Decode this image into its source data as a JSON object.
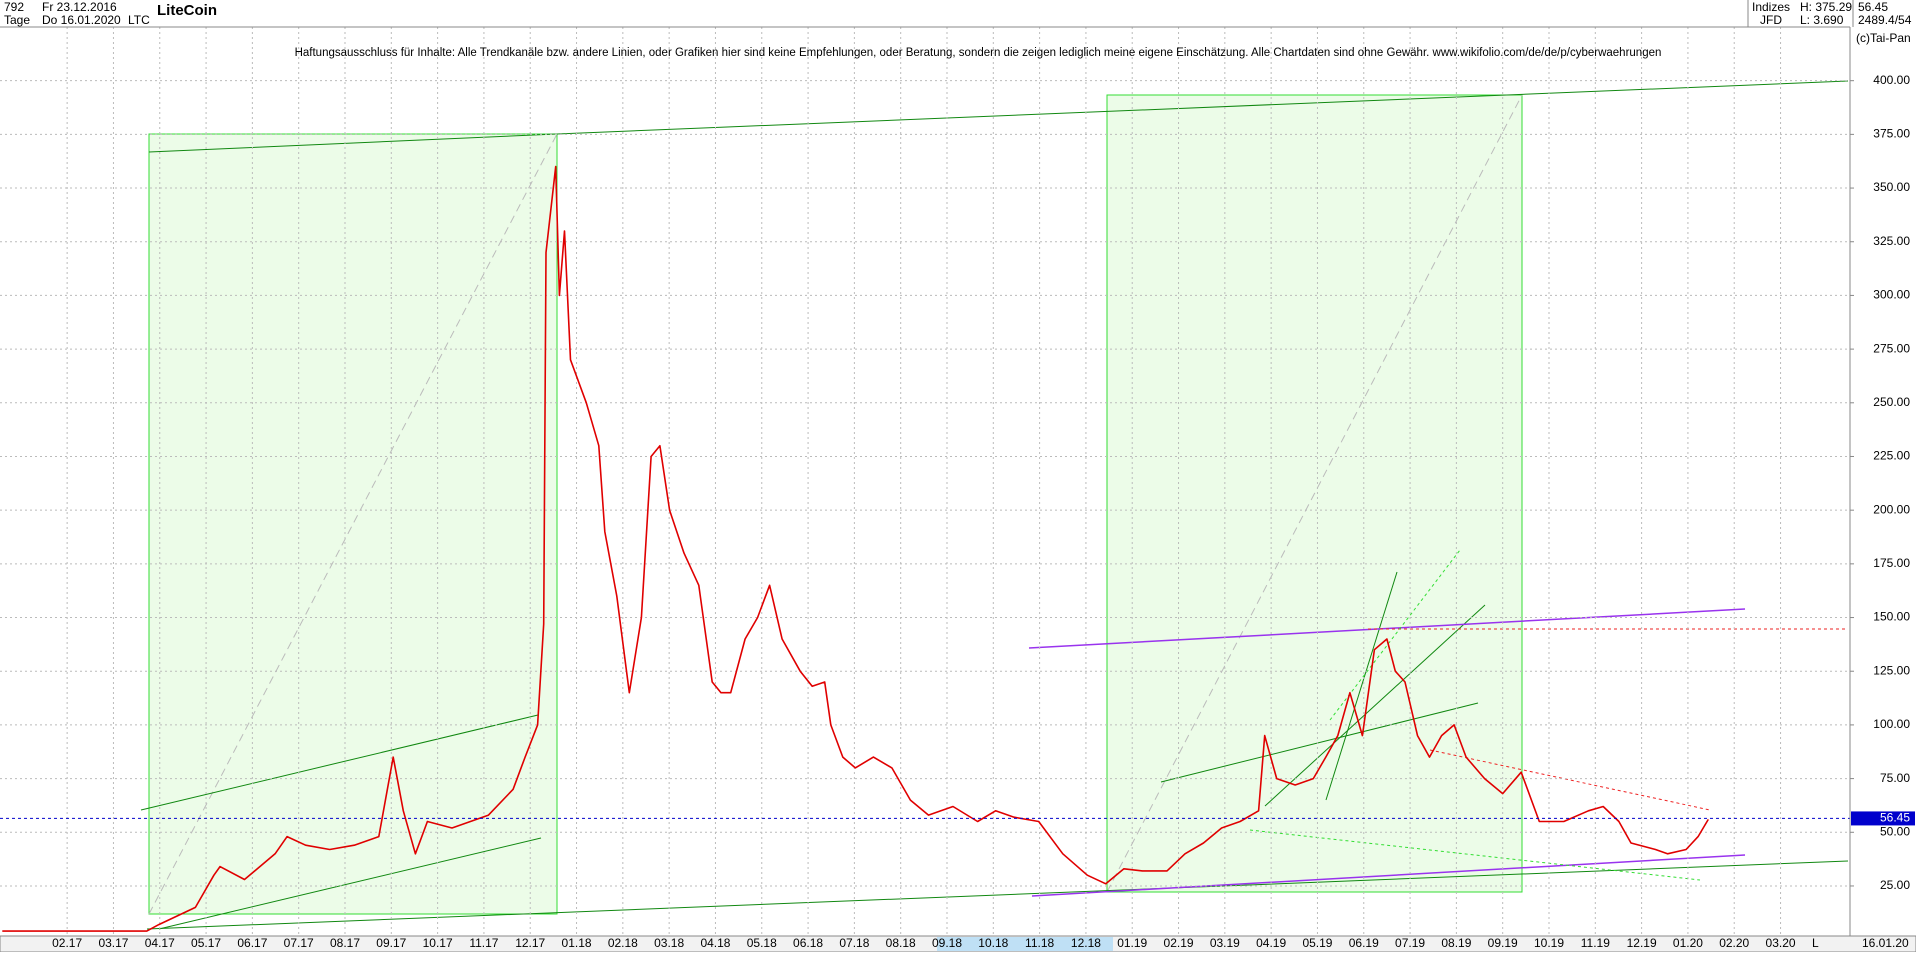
{
  "header": {
    "id": "792",
    "start_date": "Fr 23.12.2016",
    "period": "Tage",
    "end_date": "Do 16.01.2020",
    "symbol": "LTC",
    "group": "Indizes",
    "source": "JFD",
    "high": "H: 375.29",
    "low": "L: 3.690",
    "price": "56.45",
    "volume": "2489.4/54",
    "copyright": "(c)Tai-Pan",
    "last_date": "16.01.20",
    "scale_mode": "L"
  },
  "chart_data": {
    "type": "line",
    "title": "LiteCoin",
    "annotation": "Haftungsausschluss für Inhalte: Alle Trendkanäle bzw. andere Linien, oder Grafiken hier sind keine Empfehlungen, oder Beratung, sondern die zeigen lediglich meine eigene Einschätzung. Alle Chartdaten sind ohne Gewähr.  www.wikifolio.com/de/de/p/cyberwaehrungen",
    "current_price": 56.45,
    "current_price_color": "#0000cc",
    "xlim": [
      0.55,
      40.5
    ],
    "ylim": [
      1.7,
      425
    ],
    "grid": true,
    "xticks": [
      {
        "value": 2,
        "label": "02.17"
      },
      {
        "value": 3,
        "label": "03.17"
      },
      {
        "value": 4,
        "label": "04.17"
      },
      {
        "value": 5,
        "label": "05.17"
      },
      {
        "value": 6,
        "label": "06.17"
      },
      {
        "value": 7,
        "label": "07.17"
      },
      {
        "value": 8,
        "label": "08.17"
      },
      {
        "value": 9,
        "label": "09.17"
      },
      {
        "value": 10,
        "label": "10.17"
      },
      {
        "value": 11,
        "label": "11.17"
      },
      {
        "value": 12,
        "label": "12.17"
      },
      {
        "value": 13,
        "label": "01.18"
      },
      {
        "value": 14,
        "label": "02.18"
      },
      {
        "value": 15,
        "label": "03.18"
      },
      {
        "value": 16,
        "label": "04.18"
      },
      {
        "value": 17,
        "label": "05.18"
      },
      {
        "value": 18,
        "label": "06.18"
      },
      {
        "value": 19,
        "label": "07.18"
      },
      {
        "value": 20,
        "label": "08.18"
      },
      {
        "value": 21,
        "label": "09.18"
      },
      {
        "value": 22,
        "label": "10.18"
      },
      {
        "value": 23,
        "label": "11.18"
      },
      {
        "value": 24,
        "label": "12.18"
      },
      {
        "value": 25,
        "label": "01.19"
      },
      {
        "value": 26,
        "label": "02.19"
      },
      {
        "value": 27,
        "label": "03.19"
      },
      {
        "value": 28,
        "label": "04.19"
      },
      {
        "value": 29,
        "label": "05.19"
      },
      {
        "value": 30,
        "label": "06.19"
      },
      {
        "value": 31,
        "label": "07.19"
      },
      {
        "value": 32,
        "label": "08.19"
      },
      {
        "value": 33,
        "label": "09.19"
      },
      {
        "value": 34,
        "label": "10.19"
      },
      {
        "value": 35,
        "label": "11.19"
      },
      {
        "value": 36,
        "label": "12.19"
      },
      {
        "value": 37,
        "label": "01.20"
      },
      {
        "value": 38,
        "label": "02.20"
      },
      {
        "value": 39,
        "label": "03.20"
      }
    ],
    "yticks": [
      {
        "value": 25,
        "label": "25.00"
      },
      {
        "value": 50,
        "label": "50.00"
      },
      {
        "value": 75,
        "label": "75.00"
      },
      {
        "value": 100,
        "label": "100.00"
      },
      {
        "value": 125,
        "label": "125.00"
      },
      {
        "value": 150,
        "label": "150.00"
      },
      {
        "value": 175,
        "label": "175.00"
      },
      {
        "value": 200,
        "label": "200.00"
      },
      {
        "value": 225,
        "label": "225.00"
      },
      {
        "value": 250,
        "label": "250.00"
      },
      {
        "value": 275,
        "label": "275.00"
      },
      {
        "value": 300,
        "label": "300.00"
      },
      {
        "value": 325,
        "label": "325.00"
      },
      {
        "value": 350,
        "label": "350.00"
      },
      {
        "value": 375,
        "label": "375.00"
      },
      {
        "value": 400,
        "label": "400.00"
      }
    ],
    "series": [
      {
        "name": "LTC",
        "color": "#e00000",
        "x": [
          0.6,
          3.72,
          3.98,
          4.77,
          5.17,
          5.3,
          5.83,
          6.49,
          6.75,
          7.15,
          7.67,
          8.2,
          8.73,
          9.04,
          9.26,
          9.52,
          9.78,
          10.31,
          11.1,
          11.63,
          11.89,
          12.16,
          12.29,
          12.34,
          12.55,
          12.63,
          12.74,
          12.87,
          13.21,
          13.48,
          13.61,
          13.87,
          14.14,
          14.4,
          14.61,
          14.8,
          15.01,
          15.32,
          15.64,
          15.93,
          16.12,
          16.33,
          16.64,
          16.91,
          17.17,
          17.44,
          17.83,
          18.09,
          18.36,
          18.49,
          18.75,
          19.02,
          19.41,
          19.81,
          20.21,
          20.6,
          21.13,
          21.66,
          22.05,
          22.45,
          22.98,
          23.5,
          24.03,
          24.43,
          24.82,
          25.22,
          25.75,
          26.14,
          26.54,
          26.93,
          27.33,
          27.73,
          27.86,
          28.12,
          28.52,
          28.91,
          29.18,
          29.44,
          29.7,
          29.97,
          30.23,
          30.5,
          30.68,
          30.89,
          31.16,
          31.42,
          31.68,
          31.95,
          32.21,
          32.61,
          33.0,
          33.4,
          33.79,
          34.32,
          34.85,
          35.17,
          35.51,
          35.77,
          36.3,
          36.56,
          36.96,
          37.22,
          37.44
        ],
        "values": [
          4,
          4,
          7,
          15,
          30,
          34,
          28,
          40,
          48,
          44,
          42,
          44,
          48,
          85,
          60,
          40,
          55,
          52,
          58,
          70,
          85,
          100,
          147,
          320,
          360,
          300,
          330,
          270,
          250,
          230,
          190,
          160,
          115,
          150,
          225,
          230,
          200,
          180,
          165,
          120,
          115,
          115,
          140,
          150,
          165,
          140,
          125,
          118,
          120,
          100,
          85,
          80,
          85,
          80,
          65,
          58,
          62,
          55,
          60,
          57,
          55,
          40,
          30,
          26,
          33,
          32,
          32,
          40,
          45,
          52,
          55,
          60,
          95,
          75,
          72,
          75,
          85,
          95,
          115,
          95,
          135,
          140,
          125,
          120,
          95,
          85,
          95,
          100,
          85,
          75,
          68,
          78,
          55,
          55,
          60,
          62,
          55,
          45,
          42,
          40,
          42,
          48,
          56
        ]
      }
    ]
  }
}
